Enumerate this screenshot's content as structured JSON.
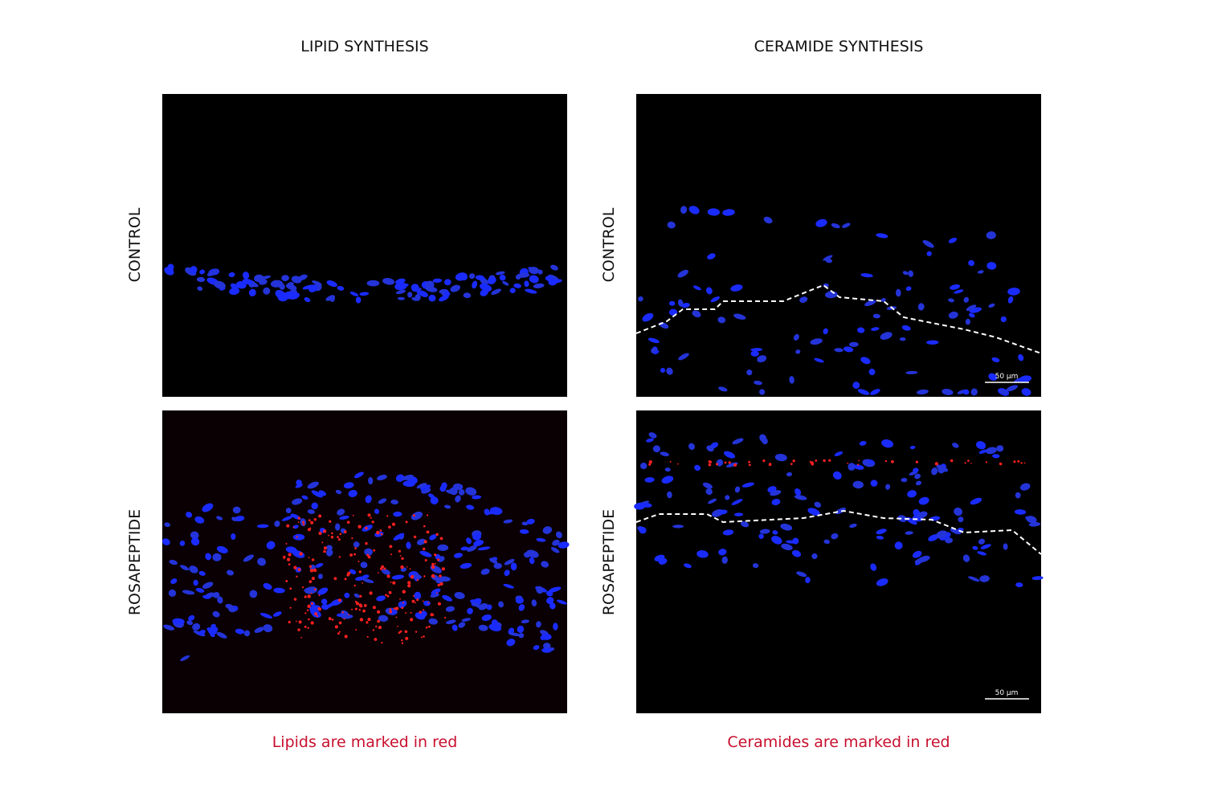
{
  "columns": [
    {
      "title": "LIPID SYNTHESIS",
      "caption": "Lipids are marked in red"
    },
    {
      "title": "CERAMIDE SYNTHESIS",
      "caption": "Ceramides are marked in red"
    }
  ],
  "rows": [
    {
      "label": "CONTROL"
    },
    {
      "label": "ROSAPEPTIDE"
    }
  ],
  "scale_bars": [
    {
      "label": "50 µm"
    },
    {
      "label": "50 µm"
    }
  ]
}
